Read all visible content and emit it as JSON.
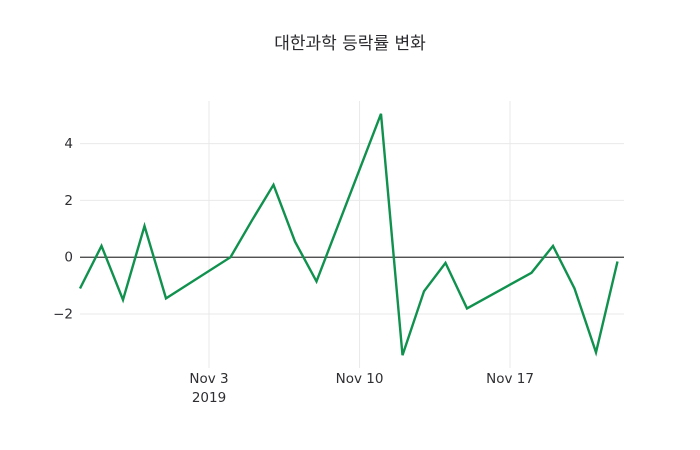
{
  "chart_data": {
    "type": "line",
    "title": "대한과학 등락률 변화",
    "xlabel": "",
    "ylabel": "",
    "legend_position": "none",
    "grid": true,
    "background_color": "#ffffff",
    "line_color": "#10914e",
    "zeroline_color": "#3a3a3a",
    "gridline_color": "#e9e9ea",
    "text_color": "#2f2f33",
    "ylim": [
      -3.9,
      5.5
    ],
    "xlim_days": [
      0,
      25.3
    ],
    "y_ticks": [
      {
        "label": "−2",
        "value": -2
      },
      {
        "label": "0",
        "value": 0
      },
      {
        "label": "2",
        "value": 2
      },
      {
        "label": "4",
        "value": 4
      }
    ],
    "x_ticks": [
      {
        "label": "Nov 3",
        "sublabel": "2019",
        "day_offset": 6
      },
      {
        "label": "Nov 10",
        "sublabel": "",
        "day_offset": 13
      },
      {
        "label": "Nov 17",
        "sublabel": "",
        "day_offset": 20
      }
    ],
    "series": [
      {
        "name": "등락률",
        "dates": [
          "Oct 28",
          "Oct 29",
          "Oct 30",
          "Oct 31",
          "Nov 1",
          "Nov 4",
          "Nov 5",
          "Nov 6",
          "Nov 7",
          "Nov 8",
          "Nov 11",
          "Nov 12",
          "Nov 13",
          "Nov 14",
          "Nov 15",
          "Nov 18",
          "Nov 19",
          "Nov 20",
          "Nov 21",
          "Nov 22"
        ],
        "day_offsets": [
          0,
          1,
          2,
          3,
          4,
          7,
          8,
          9,
          10,
          11,
          14,
          15,
          16,
          17,
          18,
          21,
          22,
          23,
          24,
          25
        ],
        "values": [
          -1.1,
          0.4,
          -1.5,
          1.1,
          -1.45,
          0.0,
          1.3,
          2.55,
          0.55,
          -0.85,
          5.05,
          -3.45,
          -1.2,
          -0.2,
          -1.8,
          -0.55,
          0.4,
          -1.1,
          -3.35,
          -0.15
        ]
      }
    ]
  }
}
